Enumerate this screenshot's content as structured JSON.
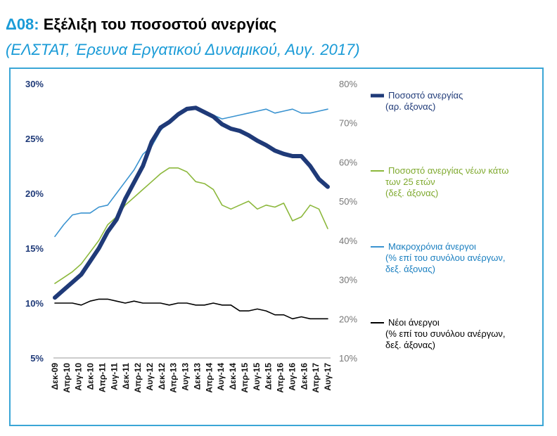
{
  "header": {
    "code": "Δ08:",
    "title": "Εξέλιξη του ποσοστού ανεργίας",
    "subtitle": "(ΕΛΣΤΑΤ, Έρευνα Εργατικού Δυναμικού, Αυγ. 2017)"
  },
  "chart_data": {
    "type": "line",
    "left_axis": {
      "ticks": [
        "30%",
        "25%",
        "20%",
        "15%",
        "10%",
        "5%"
      ],
      "range": [
        5,
        30
      ]
    },
    "right_axis": {
      "ticks": [
        "80%",
        "70%",
        "60%",
        "50%",
        "40%",
        "30%",
        "20%",
        "10%"
      ],
      "range": [
        10,
        80
      ]
    },
    "x_ticks": [
      "Δεκ-09",
      "Απρ-10",
      "Αυγ-10",
      "Δεκ-10",
      "Απρ-11",
      "Αυγ-11",
      "Δεκ-11",
      "Απρ-12",
      "Αυγ-12",
      "Δεκ-12",
      "Απρ-13",
      "Αυγ-13",
      "Δεκ-13",
      "Απρ-14",
      "Αυγ-14",
      "Δεκ-14",
      "Απρ-15",
      "Αυγ-15",
      "Δεκ-15",
      "Απρ-16",
      "Αυγ-16",
      "Δεκ-16",
      "Απρ-17",
      "Αυγ-17"
    ],
    "grid": false,
    "legend_position": "right",
    "series": [
      {
        "name": "Ποσοστό ανεργίας",
        "name2": "(αρ. άξονας)",
        "axis": "left",
        "color": "#1f3a78",
        "values": [
          10.5,
          11.2,
          11.9,
          12.6,
          13.8,
          15.0,
          16.5,
          17.6,
          19.5,
          21.0,
          22.5,
          24.7,
          26.0,
          26.5,
          27.2,
          27.7,
          27.8,
          27.4,
          27.0,
          26.3,
          25.9,
          25.7,
          25.3,
          24.8,
          24.4,
          23.9,
          23.6,
          23.4,
          23.4,
          22.5,
          21.3,
          20.6
        ]
      },
      {
        "name": "Ποσοστό ανεργίας νέων κάτω",
        "name2": "των 25 ετών",
        "name3": "(δεξ. άξονας)",
        "axis": "right",
        "color": "#8cb83c",
        "values": [
          29,
          30.5,
          32,
          34,
          37,
          40,
          44,
          46,
          49,
          51,
          53,
          55,
          57,
          58.5,
          58.5,
          57.5,
          55,
          54.5,
          53,
          49,
          48,
          49,
          50,
          48,
          49,
          48.5,
          49.5,
          45,
          46,
          49,
          48,
          43
        ]
      },
      {
        "name": "Μακροχρόνια άνεργοι",
        "name2": "(% επί του συνόλου ανέργων,",
        "name3": "δεξ. άξονας)",
        "axis": "right",
        "color": "#3a93d0",
        "values": [
          41,
          44,
          46.5,
          47,
          47,
          48.5,
          49,
          52,
          55,
          58,
          62,
          64,
          68,
          70.5,
          72,
          73.5,
          74,
          73,
          72,
          71,
          71.5,
          72,
          72.5,
          73,
          73.5,
          72.5,
          73,
          73.5,
          72.5,
          72.5,
          73,
          73.5
        ]
      },
      {
        "name": "Νέοι άνεργοι",
        "name2": "(% επί του συνόλου ανέργων,",
        "name3": "δεξ. άξονας)",
        "axis": "right",
        "color": "#000000",
        "values": [
          24,
          24,
          24,
          23.5,
          24.5,
          25,
          25,
          24.5,
          24,
          24.5,
          24,
          24,
          24,
          23.5,
          24,
          24,
          23.5,
          23.5,
          24,
          23.5,
          23.5,
          22,
          22,
          22.5,
          22,
          21,
          21,
          20,
          20.5,
          20,
          20,
          20
        ]
      }
    ]
  }
}
